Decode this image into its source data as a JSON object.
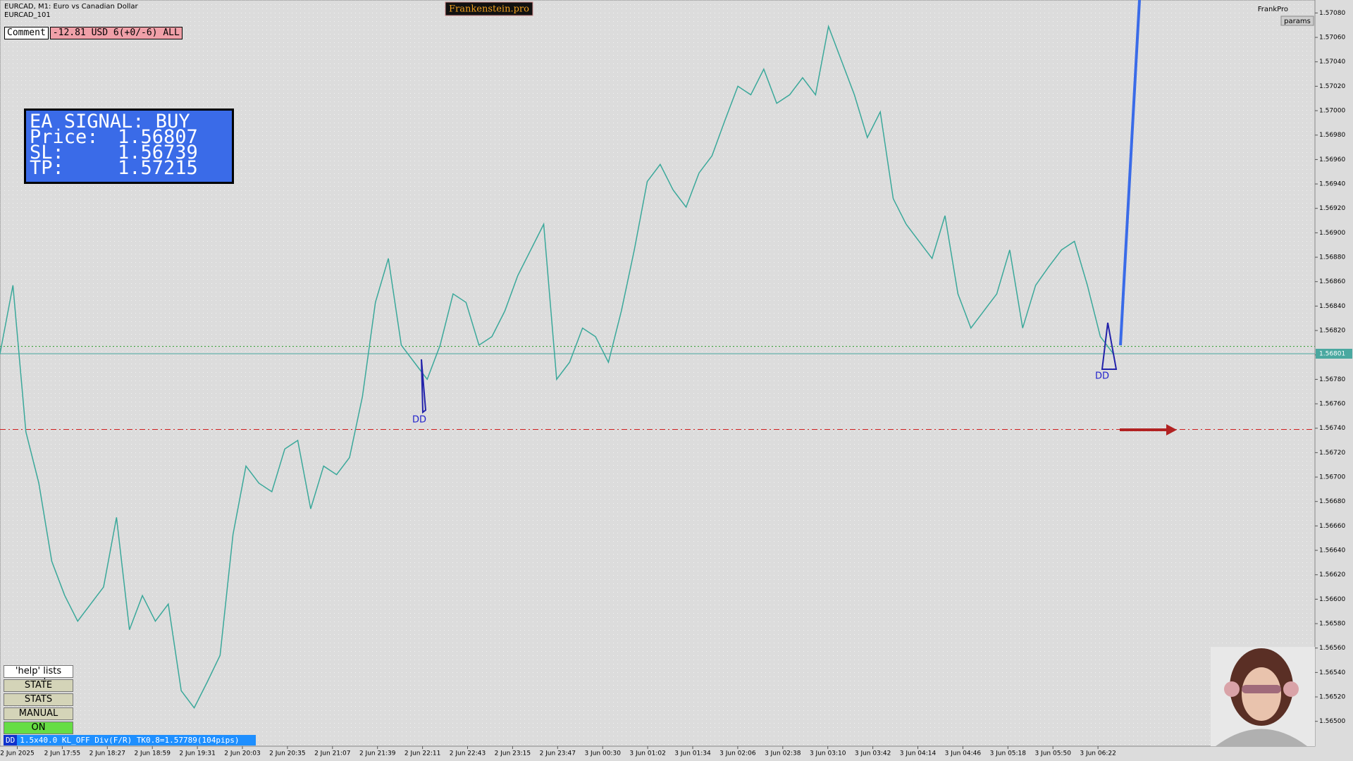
{
  "header": {
    "symbol": "EURCAD, M1:  Euro vs Canadian Dollar",
    "indicator": "EURCAD_101",
    "brand": "Frankenstein.pro",
    "user": "FrankPro",
    "params": "params"
  },
  "comment": {
    "label": "Comment",
    "text": "-12.81 USD 6(+0/-6) ALL"
  },
  "signal": {
    "title": "EA SIGNAL: BUY",
    "lines": [
      [
        "Price:",
        "1.56807"
      ],
      [
        "SL:",
        "1.56739"
      ],
      [
        "TP:",
        "1.57215"
      ]
    ]
  },
  "buttons": [
    "'help' lists cmds",
    "STATE",
    "STATS",
    "MANUAL",
    "ON"
  ],
  "status": {
    "tag": "DD",
    "text": "1.5x40.0 KL_OFF Div(F/R) TK0.8=1.57789(104pips)"
  },
  "dd_labels": [
    "DD",
    "DD"
  ],
  "chart": {
    "ylim": [
      1.5649,
      1.5709
    ],
    "yticks": [
      {
        "value": 1.5708,
        "label": "1.57080"
      },
      {
        "value": 1.5706,
        "label": "1.57060"
      },
      {
        "value": 1.5704,
        "label": "1.57040"
      },
      {
        "value": 1.5702,
        "label": "1.57020"
      },
      {
        "value": 1.57,
        "label": "1.57000"
      },
      {
        "value": 1.5698,
        "label": "1.56980"
      },
      {
        "value": 1.5696,
        "label": "1.56960"
      },
      {
        "value": 1.5694,
        "label": "1.56940"
      },
      {
        "value": 1.5692,
        "label": "1.56920"
      },
      {
        "value": 1.569,
        "label": "1.56900"
      },
      {
        "value": 1.5688,
        "label": "1.56880"
      },
      {
        "value": 1.5686,
        "label": "1.56860"
      },
      {
        "value": 1.5684,
        "label": "1.56840"
      },
      {
        "value": 1.5682,
        "label": "1.56820"
      },
      {
        "value": 1.568,
        "label": "1.56800"
      },
      {
        "value": 1.5678,
        "label": "1.56780"
      },
      {
        "value": 1.5676,
        "label": "1.56760"
      },
      {
        "value": 1.5674,
        "label": "1.56740"
      },
      {
        "value": 1.5672,
        "label": "1.56720"
      },
      {
        "value": 1.567,
        "label": "1.56700"
      },
      {
        "value": 1.5668,
        "label": "1.56680"
      },
      {
        "value": 1.5666,
        "label": "1.56660"
      },
      {
        "value": 1.5664,
        "label": "1.56640"
      },
      {
        "value": 1.5662,
        "label": "1.56620"
      },
      {
        "value": 1.566,
        "label": "1.56600"
      },
      {
        "value": 1.5658,
        "label": "1.56580"
      },
      {
        "value": 1.5656,
        "label": "1.56560"
      },
      {
        "value": 1.5654,
        "label": "1.56540"
      },
      {
        "value": 1.5652,
        "label": "1.56520"
      },
      {
        "value": 1.565,
        "label": "1.56500"
      }
    ],
    "current_price": {
      "value": 1.56801,
      "label": "1.56801"
    },
    "entry_level": 1.56807,
    "sl_level": 1.56739,
    "xticks": [
      "2 Jun 2025",
      "2 Jun 17:55",
      "2 Jun 18:27",
      "2 Jun 18:59",
      "2 Jun 19:31",
      "2 Jun 20:03",
      "2 Jun 20:35",
      "2 Jun 21:07",
      "2 Jun 21:39",
      "2 Jun 22:11",
      "2 Jun 22:43",
      "2 Jun 23:15",
      "2 Jun 23:47",
      "3 Jun 00:30",
      "3 Jun 01:02",
      "3 Jun 01:34",
      "3 Jun 02:06",
      "3 Jun 02:38",
      "3 Jun 03:10",
      "3 Jun 03:42",
      "3 Jun 04:14",
      "3 Jun 04:46",
      "3 Jun 05:18",
      "3 Jun 05:50",
      "3 Jun 06:22"
    ],
    "close": [
      1.56801,
      1.56857,
      1.56737,
      1.56695,
      1.56631,
      1.56603,
      1.56582,
      1.56596,
      1.5661,
      1.56667,
      1.56575,
      1.56603,
      1.56582,
      1.56596,
      1.56525,
      1.56511,
      1.56532,
      1.56554,
      1.56653,
      1.56709,
      1.56695,
      1.56688,
      1.56723,
      1.5673,
      1.56674,
      1.56709,
      1.56702,
      1.56716,
      1.56766,
      1.56843,
      1.56879,
      1.56808,
      1.56794,
      1.5678,
      1.56808,
      1.5685,
      1.56843,
      1.56808,
      1.56815,
      1.56836,
      1.56865,
      1.56886,
      1.56907,
      1.5678,
      1.56794,
      1.56822,
      1.56815,
      1.56794,
      1.56836,
      1.56886,
      1.56942,
      1.56956,
      1.56935,
      1.56921,
      1.56949,
      1.56963,
      1.56992,
      1.5702,
      1.57013,
      1.57034,
      1.57006,
      1.57013,
      1.57027,
      1.57013,
      1.57069,
      1.57041,
      1.57013,
      1.56978,
      1.56999,
      1.56928,
      1.56907,
      1.56893,
      1.56879,
      1.56914,
      1.5685,
      1.56822,
      1.56836,
      1.5685,
      1.56886,
      1.56822,
      1.56857,
      1.56872,
      1.56886,
      1.56893,
      1.56857,
      1.56815,
      1.56801
    ]
  }
}
